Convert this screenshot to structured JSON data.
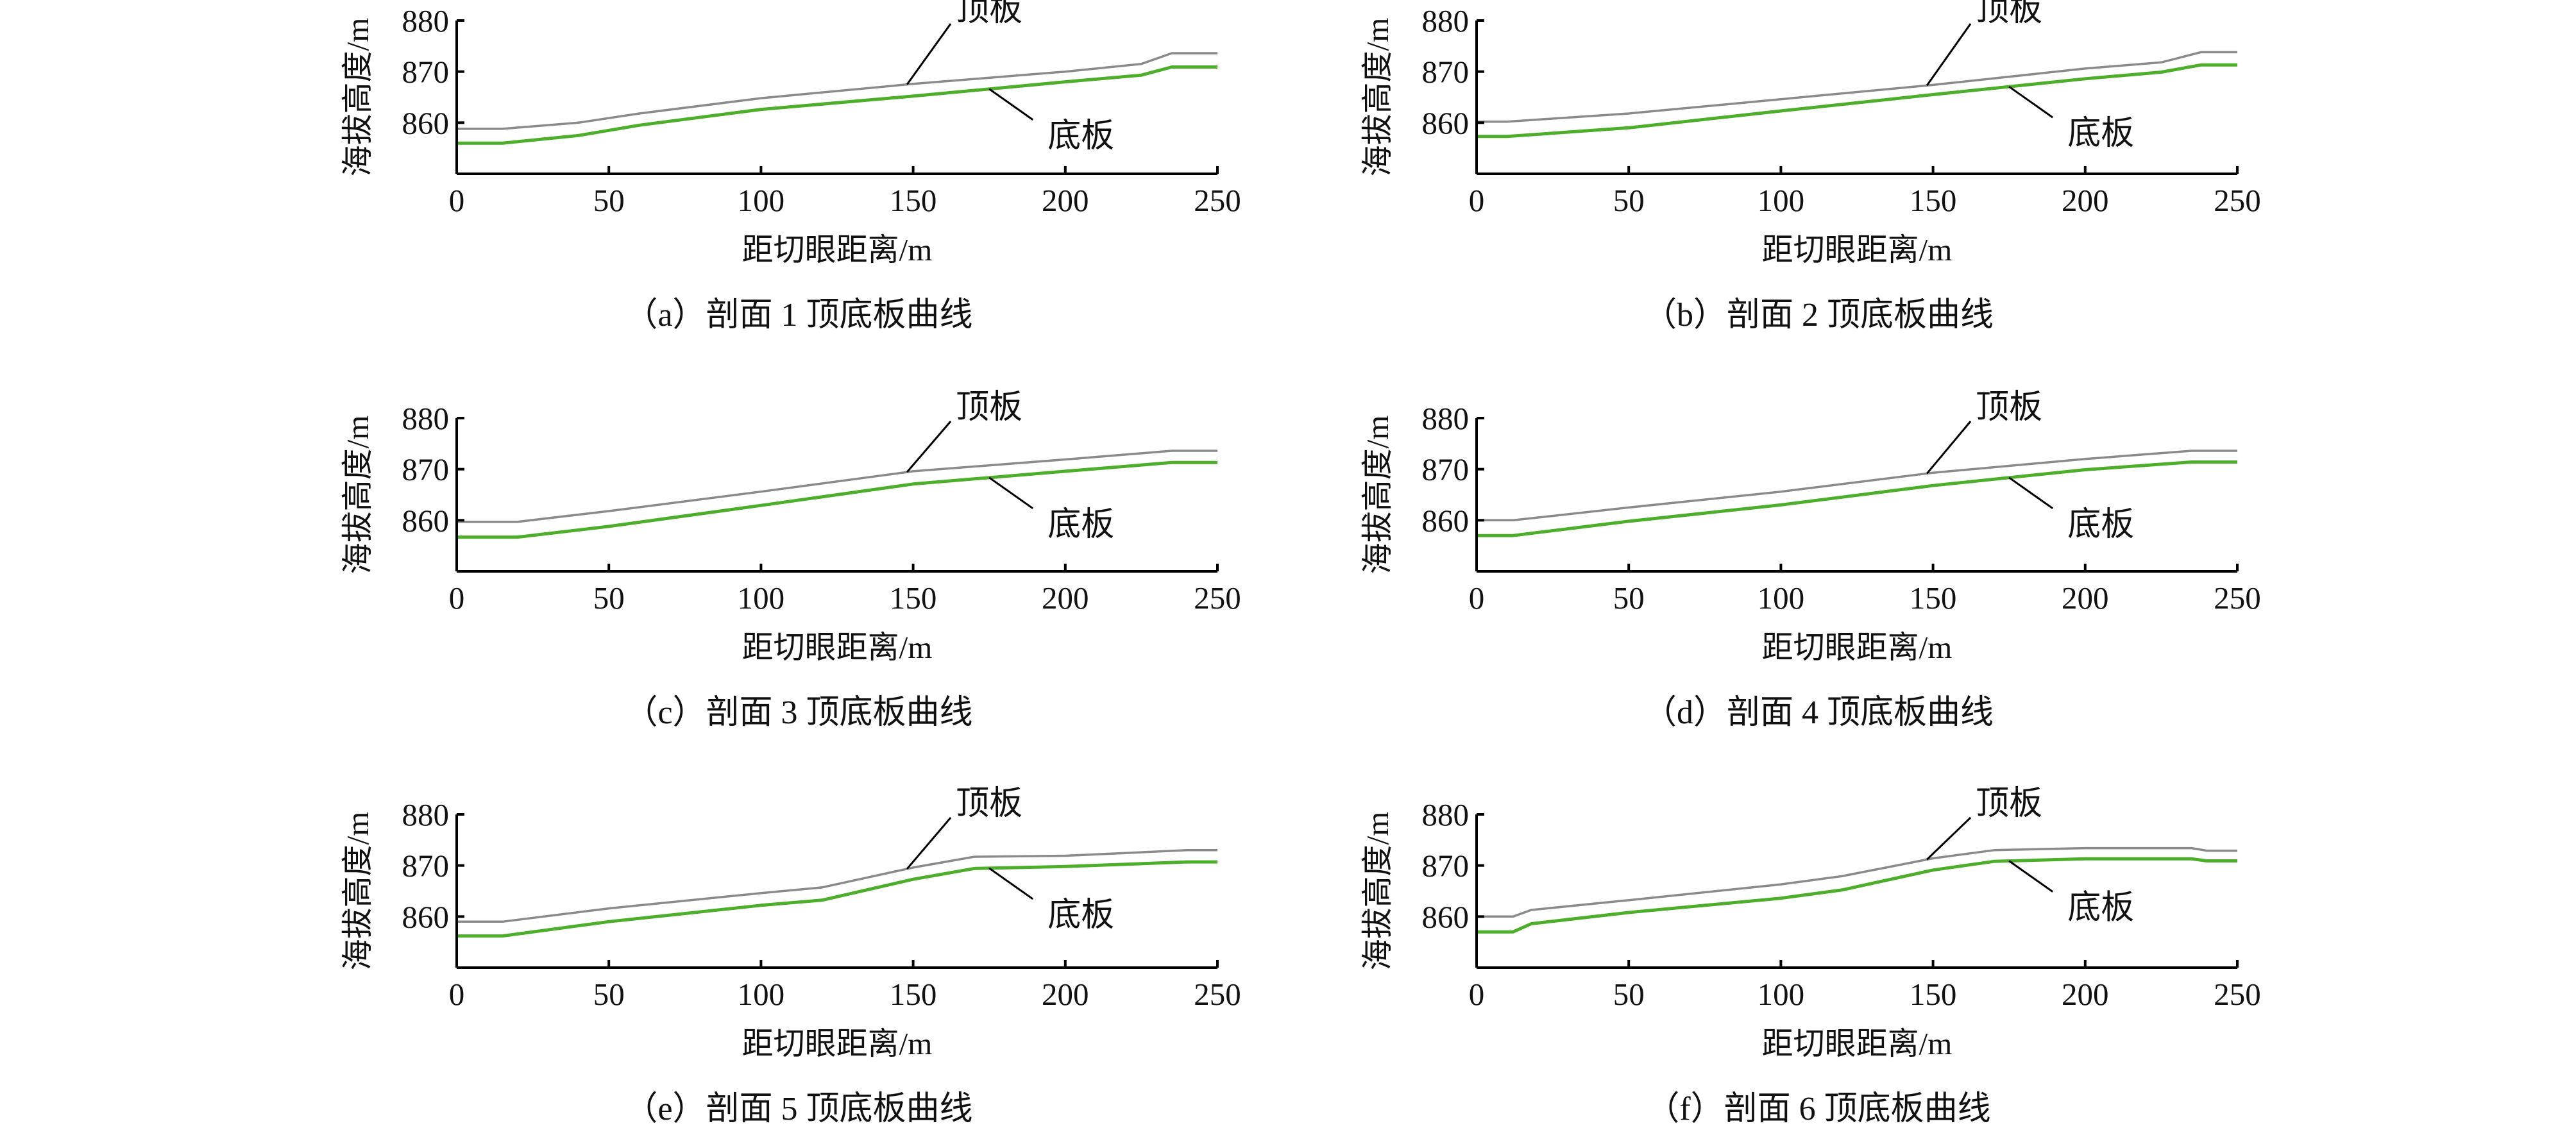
{
  "chart_data": [
    {
      "type": "line",
      "caption": "（a）剖面 1 顶底板曲线",
      "xlabel": "距切眼距离/m",
      "ylabel": "海拔高度/m",
      "xlim": [
        0,
        250
      ],
      "ylim": [
        850,
        880
      ],
      "x_ticks": [
        "0",
        "50",
        "100",
        "150",
        "200",
        "250"
      ],
      "y_ticks": [
        "860",
        "870",
        "880"
      ],
      "series": [
        {
          "name": "顶板",
          "color": "#8a8a8a",
          "x": [
            0,
            15,
            40,
            60,
            100,
            150,
            200,
            225,
            235,
            250
          ],
          "y": [
            858.8,
            858.8,
            860.0,
            861.8,
            864.8,
            867.6,
            870.0,
            871.5,
            873.6,
            873.6
          ]
        },
        {
          "name": "底板",
          "color": "#4cae2a",
          "x": [
            0,
            15,
            40,
            60,
            100,
            150,
            200,
            225,
            235,
            250
          ],
          "y": [
            856.0,
            856.0,
            857.5,
            859.5,
            862.6,
            865.2,
            868.0,
            869.3,
            870.9,
            870.9
          ]
        }
      ]
    },
    {
      "type": "line",
      "caption": "（b）剖面 2 顶底板曲线",
      "xlabel": "距切眼距离/m",
      "ylabel": "海拔高度/m",
      "xlim": [
        0,
        250
      ],
      "ylim": [
        850,
        880
      ],
      "x_ticks": [
        "0",
        "50",
        "100",
        "150",
        "200",
        "250"
      ],
      "y_ticks": [
        "860",
        "870",
        "880"
      ],
      "series": [
        {
          "name": "顶板",
          "color": "#8a8a8a",
          "x": [
            0,
            10,
            50,
            100,
            150,
            200,
            225,
            238,
            250
          ],
          "y": [
            860.2,
            860.2,
            861.8,
            864.6,
            867.4,
            870.6,
            871.8,
            873.8,
            873.8
          ]
        },
        {
          "name": "底板",
          "color": "#4cae2a",
          "x": [
            0,
            10,
            50,
            100,
            150,
            200,
            225,
            238,
            250
          ],
          "y": [
            857.3,
            857.3,
            859.0,
            862.3,
            865.5,
            868.6,
            869.9,
            871.3,
            871.3
          ]
        }
      ]
    },
    {
      "type": "line",
      "caption": "（c）剖面 3 顶底板曲线",
      "xlabel": "距切眼距离/m",
      "ylabel": "海拔高度/m",
      "xlim": [
        0,
        250
      ],
      "ylim": [
        850,
        880
      ],
      "x_ticks": [
        "0",
        "50",
        "100",
        "150",
        "200",
        "250"
      ],
      "y_ticks": [
        "860",
        "870",
        "880"
      ],
      "series": [
        {
          "name": "顶板",
          "color": "#8a8a8a",
          "x": [
            0,
            20,
            50,
            100,
            150,
            200,
            235,
            250
          ],
          "y": [
            859.7,
            859.7,
            861.8,
            865.6,
            869.6,
            871.9,
            873.6,
            873.6
          ]
        },
        {
          "name": "底板",
          "color": "#4cae2a",
          "x": [
            0,
            20,
            50,
            100,
            150,
            200,
            235,
            250
          ],
          "y": [
            856.7,
            856.7,
            858.8,
            862.9,
            867.1,
            869.6,
            871.3,
            871.3
          ]
        }
      ]
    },
    {
      "type": "line",
      "caption": "（d）剖面 4 顶底板曲线",
      "xlabel": "距切眼距离/m",
      "ylabel": "海拔高度/m",
      "xlim": [
        0,
        250
      ],
      "ylim": [
        850,
        880
      ],
      "x_ticks": [
        "0",
        "50",
        "100",
        "150",
        "200",
        "250"
      ],
      "y_ticks": [
        "860",
        "870",
        "880"
      ],
      "series": [
        {
          "name": "顶板",
          "color": "#8a8a8a",
          "x": [
            0,
            12,
            50,
            100,
            150,
            200,
            235,
            250
          ],
          "y": [
            860.0,
            860.0,
            862.5,
            865.6,
            869.3,
            872.0,
            873.6,
            873.6
          ]
        },
        {
          "name": "底板",
          "color": "#4cae2a",
          "x": [
            0,
            12,
            50,
            100,
            150,
            200,
            235,
            250
          ],
          "y": [
            857.0,
            857.0,
            859.8,
            863.0,
            866.8,
            869.9,
            871.4,
            871.4
          ]
        }
      ]
    },
    {
      "type": "line",
      "caption": "（e）剖面 5 顶底板曲线",
      "xlabel": "距切眼距离/m",
      "ylabel": "海拔高度/m",
      "xlim": [
        0,
        250
      ],
      "ylim": [
        850,
        880
      ],
      "x_ticks": [
        "0",
        "50",
        "100",
        "150",
        "200",
        "250"
      ],
      "y_ticks": [
        "860",
        "870",
        "880"
      ],
      "series": [
        {
          "name": "顶板",
          "color": "#8a8a8a",
          "x": [
            0,
            15,
            50,
            100,
            120,
            150,
            170,
            200,
            240,
            250
          ],
          "y": [
            859.0,
            859.0,
            861.6,
            864.6,
            865.7,
            869.6,
            871.7,
            871.9,
            873.0,
            873.0
          ]
        },
        {
          "name": "底板",
          "color": "#4cae2a",
          "x": [
            0,
            15,
            50,
            100,
            120,
            150,
            170,
            200,
            240,
            250
          ],
          "y": [
            856.2,
            856.2,
            859.0,
            862.2,
            863.2,
            867.3,
            869.4,
            869.8,
            870.7,
            870.7
          ]
        }
      ]
    },
    {
      "type": "line",
      "caption": "（f）剖面 6 顶底板曲线",
      "xlabel": "距切眼距离/m",
      "ylabel": "海拔高度/m",
      "xlim": [
        0,
        250
      ],
      "ylim": [
        850,
        880
      ],
      "x_ticks": [
        "0",
        "50",
        "100",
        "150",
        "200",
        "250"
      ],
      "y_ticks": [
        "860",
        "870",
        "880"
      ],
      "series": [
        {
          "name": "顶板",
          "color": "#8a8a8a",
          "x": [
            0,
            12,
            18,
            50,
            100,
            120,
            150,
            170,
            200,
            235,
            240,
            250
          ],
          "y": [
            860.0,
            860.0,
            861.3,
            863.2,
            866.3,
            867.9,
            871.4,
            873.0,
            873.4,
            873.4,
            872.9,
            872.9
          ]
        },
        {
          "name": "底板",
          "color": "#4cae2a",
          "x": [
            0,
            12,
            18,
            50,
            100,
            120,
            150,
            170,
            200,
            235,
            240,
            250
          ],
          "y": [
            857.0,
            857.0,
            858.6,
            860.8,
            863.6,
            865.2,
            869.1,
            870.8,
            871.3,
            871.3,
            870.9,
            870.9
          ]
        }
      ]
    }
  ]
}
